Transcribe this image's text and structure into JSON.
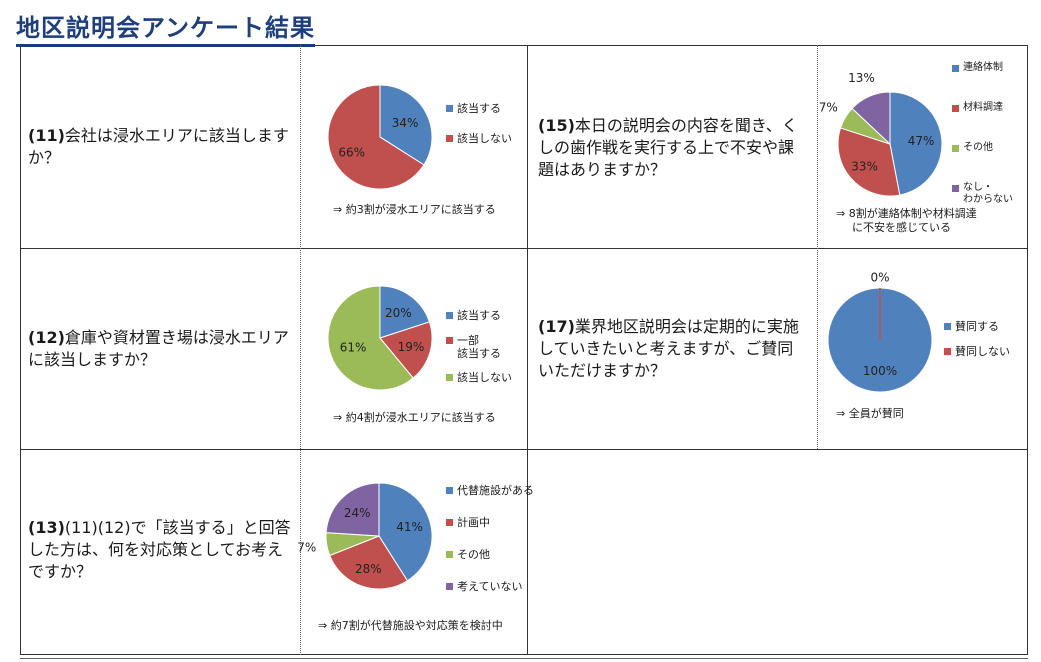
{
  "page": {
    "title": "地区説明会アンケート結果"
  },
  "questions": {
    "q11": {
      "number": "(11)",
      "text": "会社は浸水エリアに該当しますか？",
      "note": "⇒ 約3割が浸水エリアに該当する"
    },
    "q12": {
      "number": "(12)",
      "text": "倉庫や資材置き場は浸水エリアに該当しますか？",
      "note": "⇒ 約4割が浸水エリアに該当する"
    },
    "q13": {
      "number": "(13)",
      "text": "(11)(12)で「該当する」と回答した方は、何を対応策としてお考えですか？",
      "note": "⇒ 約7割が代替施設や対応策を検討中"
    },
    "q15": {
      "number": "(15)",
      "text": "本日の説明会の内容を聞き、くしの歯作戦を実行する上で不安や課題はありますか？",
      "note_line1": "⇒ 8割が連絡体制や材料調達",
      "note_line2": "に不安を感じている"
    },
    "q17": {
      "number": "(17)",
      "text": "業界地区説明会は定期的に実施していきたいと考えますが、ご賛同いただけますか？",
      "note": "⇒ 全員が賛同"
    }
  },
  "colors": {
    "blue": "#4f81bd",
    "red": "#c0504d",
    "green": "#9bbb59",
    "purple": "#8064a2",
    "title": "#1f3f7a"
  },
  "chart_data": [
    {
      "id": "q11",
      "type": "pie",
      "categories": [
        "該当する",
        "該当しない"
      ],
      "values": [
        34,
        66
      ],
      "labels": [
        "34%",
        "66%"
      ],
      "colors": [
        "#4f81bd",
        "#c0504d"
      ],
      "legend": "right"
    },
    {
      "id": "q12",
      "type": "pie",
      "categories": [
        "該当する",
        "一部該当する",
        "該当しない"
      ],
      "legend_lines": [
        [
          "該当する"
        ],
        [
          "一部",
          "該当する"
        ],
        [
          "該当しない"
        ]
      ],
      "values": [
        20,
        19,
        61
      ],
      "labels": [
        "20%",
        "19%",
        "61%"
      ],
      "colors": [
        "#4f81bd",
        "#c0504d",
        "#9bbb59"
      ],
      "legend": "right"
    },
    {
      "id": "q13",
      "type": "pie",
      "categories": [
        "代替施設がある",
        "計画中",
        "その他",
        "考えていない"
      ],
      "values": [
        41,
        28,
        7,
        24
      ],
      "labels": [
        "41%",
        "28%",
        "7%",
        "24%"
      ],
      "colors": [
        "#4f81bd",
        "#c0504d",
        "#9bbb59",
        "#8064a2"
      ],
      "legend": "right"
    },
    {
      "id": "q15",
      "type": "pie",
      "categories": [
        "連絡体制",
        "材料調達",
        "その他",
        "なし・わからない"
      ],
      "legend_lines": [
        [
          "連絡体制"
        ],
        [
          "材料調達"
        ],
        [
          "その他"
        ],
        [
          "なし・",
          "わからない"
        ]
      ],
      "values": [
        47,
        33,
        7,
        13
      ],
      "labels": [
        "47%",
        "33%",
        "7%",
        "13%"
      ],
      "colors": [
        "#4f81bd",
        "#c0504d",
        "#9bbb59",
        "#8064a2"
      ],
      "legend": "right"
    },
    {
      "id": "q17",
      "type": "pie",
      "categories": [
        "賛同する",
        "賛同しない"
      ],
      "values": [
        100,
        0
      ],
      "labels": [
        "100%",
        "0%"
      ],
      "colors": [
        "#4f81bd",
        "#c0504d"
      ],
      "legend": "right"
    }
  ]
}
